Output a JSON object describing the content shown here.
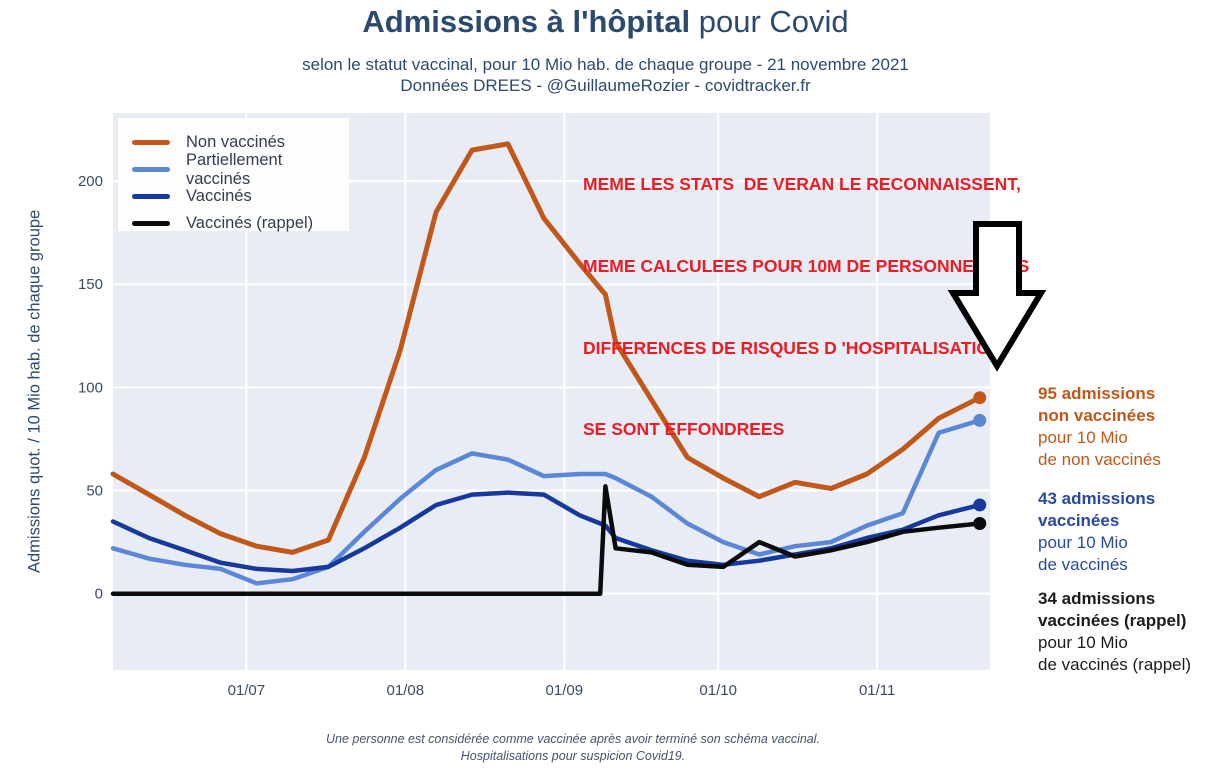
{
  "header": {
    "title_bold": "Admissions à l'hôpital",
    "title_regular": " pour Covid",
    "subtitle_line1": "selon le statut vaccinal, pour 10 Mio hab. de chaque groupe - 21 novembre 2021",
    "subtitle_line2": "Données DREES - @GuillaumeRozier - covidtracker.fr"
  },
  "annotation": {
    "color": "#ed1c24",
    "lines": [
      "MEME LES STATS  DE VERAN LE RECONNAISSENT,",
      "MEME CALCULEES POUR 10M DE PERSONNES  LES",
      "DIFFERENCES DE RISQUES D 'HOSPITALISATION",
      "SE SONT EFFONDREES"
    ]
  },
  "legend": {
    "items": [
      {
        "label": "Non vaccinés",
        "color": "#c2571a"
      },
      {
        "label": "Partiellement vaccinés",
        "color": "#5c87d6"
      },
      {
        "label": "Vaccinés",
        "color": "#17399e"
      },
      {
        "label": "Vaccinés (rappel)",
        "color": "#0b0b0b"
      }
    ]
  },
  "right_labels": [
    {
      "color": "#c2571a",
      "bold1": "95 admissions",
      "bold2": "non vaccinées",
      "reg1": "pour 10 Mio",
      "reg2": "de non vaccinés"
    },
    {
      "color": "#2a49a0",
      "bold1": "43 admissions",
      "bold2": "vaccinées",
      "reg1": "pour 10 Mio",
      "reg2": "de vaccinés"
    },
    {
      "color": "#1c1c1e",
      "bold1": "34 admissions",
      "bold2": "vaccinées (rappel)",
      "reg1": "pour 10 Mio",
      "reg2": "de vaccinés (rappel)"
    }
  ],
  "footnotes": {
    "line1": "Une personne est considérée comme vaccinée après avoir terminé son schéma vaccinal.",
    "line2": "Hospitalisations pour suspicion Covid19."
  },
  "chart_data": {
    "type": "line",
    "title": "Admissions à l'hôpital pour Covid",
    "xlabel": "",
    "ylabel": "Admissions quot. / 10 Mio hab. de chaque groupe",
    "plot_bg": "#e8ecf5",
    "grid_color": "#ffffff",
    "ylim": [
      -37,
      233
    ],
    "x_domain_days": [
      0,
      171
    ],
    "y_ticks": [
      0,
      50,
      100,
      150,
      200
    ],
    "x_ticks": [
      "01/07",
      "01/08",
      "01/09",
      "01/10",
      "01/11"
    ],
    "x_dates": [
      "05/06",
      "12/06",
      "19/06",
      "26/06",
      "03/07",
      "10/07",
      "17/07",
      "24/07",
      "31/07",
      "07/08",
      "14/08",
      "21/08",
      "28/08",
      "04/09",
      "08/09",
      "09/09",
      "11/09",
      "18/09",
      "25/09",
      "02/10",
      "09/10",
      "16/10",
      "23/10",
      "30/10",
      "06/11",
      "13/11",
      "21/11"
    ],
    "series": [
      {
        "name": "Non vaccinés",
        "color": "#c2571a",
        "width": 5,
        "values": [
          58,
          48,
          38,
          29,
          23,
          20,
          26,
          66,
          118,
          185,
          215,
          218,
          182,
          160,
          148,
          145,
          122,
          94,
          66,
          56,
          47,
          54,
          51,
          58,
          70,
          85,
          95
        ]
      },
      {
        "name": "Partiellement vaccinés",
        "color": "#5c87d6",
        "width": 4.5,
        "values": [
          22,
          17,
          14,
          12,
          5,
          7,
          13,
          30,
          46,
          60,
          68,
          65,
          57,
          58,
          58,
          58,
          56,
          47,
          34,
          25,
          19,
          23,
          25,
          33,
          39,
          78,
          84
        ]
      },
      {
        "name": "Vaccinés",
        "color": "#17399e",
        "width": 4.5,
        "values": [
          35,
          27,
          21,
          15,
          12,
          11,
          13,
          22,
          32,
          43,
          48,
          49,
          48,
          38,
          34,
          33,
          27,
          21,
          16,
          14,
          16,
          19,
          22,
          27,
          31,
          38,
          43
        ]
      },
      {
        "name": "Vaccinés (rappel)",
        "color": "#0b0b0b",
        "width": 4.5,
        "values": [
          0,
          0,
          0,
          0,
          0,
          0,
          0,
          0,
          0,
          0,
          0,
          0,
          0,
          0,
          0,
          52,
          22,
          20,
          14,
          13,
          25,
          18,
          21,
          25,
          30,
          32,
          34
        ]
      }
    ]
  }
}
